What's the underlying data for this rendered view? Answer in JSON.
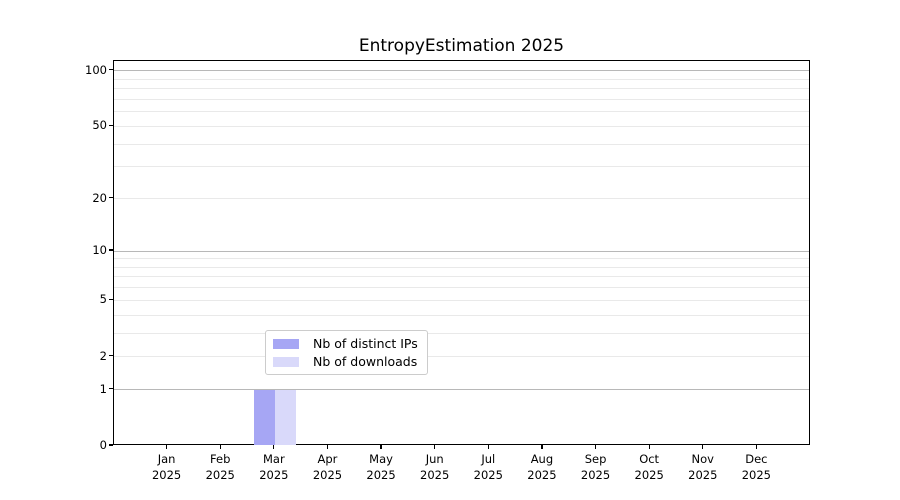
{
  "chart_data": {
    "type": "bar",
    "title": "EntropyEstimation 2025",
    "categories": [
      "Jan 2025",
      "Feb 2025",
      "Mar 2025",
      "Apr 2025",
      "May 2025",
      "Jun 2025",
      "Jul 2025",
      "Aug 2025",
      "Sep 2025",
      "Oct 2025",
      "Nov 2025",
      "Dec 2025"
    ],
    "months": [
      "Jan",
      "Feb",
      "Mar",
      "Apr",
      "May",
      "Jun",
      "Jul",
      "Aug",
      "Sep",
      "Oct",
      "Nov",
      "Dec"
    ],
    "year": "2025",
    "series": [
      {
        "name": "Nb of distinct IPs",
        "color": "#a6a6f4",
        "values": [
          0,
          0,
          1,
          0,
          0,
          0,
          0,
          0,
          0,
          0,
          0,
          0
        ]
      },
      {
        "name": "Nb of downloads",
        "color": "#d9d9fa",
        "values": [
          0,
          0,
          1,
          0,
          0,
          0,
          0,
          0,
          0,
          0,
          0,
          0
        ]
      }
    ],
    "y_axis": {
      "scale": "log10(1+v)",
      "tick_values": [
        0,
        1,
        2,
        5,
        10,
        20,
        50,
        100
      ],
      "tick_labels": [
        "0",
        "1",
        "2",
        "5",
        "10",
        "20",
        "50",
        "100"
      ],
      "major_gridlines": [
        1,
        10,
        100
      ],
      "minor_gridlines": [
        2,
        3,
        4,
        5,
        6,
        7,
        8,
        9,
        20,
        30,
        40,
        50,
        60,
        70,
        80,
        90
      ],
      "axis_max": 113,
      "axis_min": 0
    },
    "legend": {
      "position": "lower center",
      "entries": [
        "Nb of distinct IPs",
        "Nb of downloads"
      ]
    },
    "grid": "on",
    "colors": {
      "major_grid": "#b8b8b8",
      "minor_grid": "#e9e9e9",
      "spine": "#000000",
      "background": "#ffffff",
      "legend_border": "#cccccc"
    }
  }
}
